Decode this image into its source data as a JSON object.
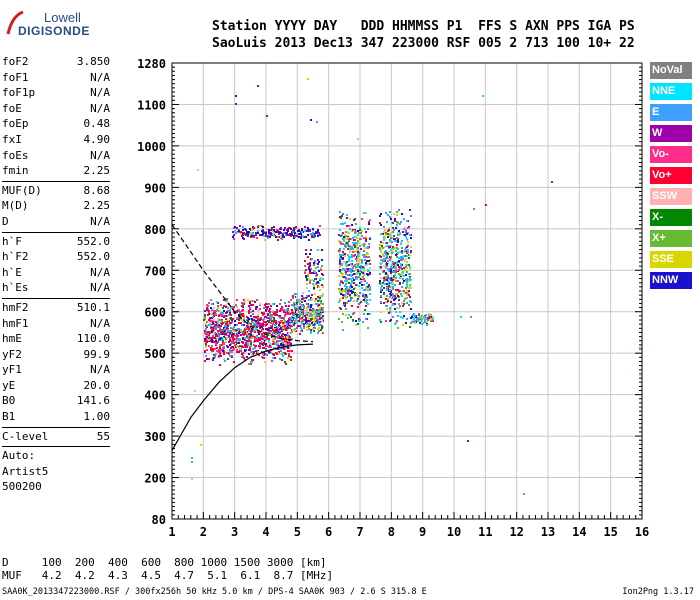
{
  "logo": {
    "line1": "Lowell",
    "line2": "DIGISONDE"
  },
  "header": {
    "row1": "Station YYYY DAY   DDD HHMMSS P1  FFS S AXN PPS IGA PS",
    "row2": "SaoLuis 2013 Dec13 347 223000 RSF 005 2 713 100 10+ 22"
  },
  "params": [
    {
      "label": "foF2",
      "value": "3.850"
    },
    {
      "label": "foF1",
      "value": "N/A"
    },
    {
      "label": "foF1p",
      "value": "N/A"
    },
    {
      "label": "foE",
      "value": "N/A"
    },
    {
      "label": "foEp",
      "value": "0.48"
    },
    {
      "label": "fxI",
      "value": "4.90"
    },
    {
      "label": "foEs",
      "value": "N/A"
    },
    {
      "label": "fmin",
      "value": "2.25"
    },
    {
      "sep": true
    },
    {
      "label": "MUF(D)",
      "value": "8.68"
    },
    {
      "label": "M(D)",
      "value": "2.25"
    },
    {
      "label": "D",
      "value": "N/A"
    },
    {
      "sep": true
    },
    {
      "label": "h`F",
      "value": "552.0"
    },
    {
      "label": "h`F2",
      "value": "552.0"
    },
    {
      "label": "h`E",
      "value": "N/A"
    },
    {
      "label": "h`Es",
      "value": "N/A"
    },
    {
      "sep": true
    },
    {
      "label": "hmF2",
      "value": "510.1"
    },
    {
      "label": "hmF1",
      "value": "N/A"
    },
    {
      "label": "hmE",
      "value": "110.0"
    },
    {
      "label": "yF2",
      "value": "99.9"
    },
    {
      "label": "yF1",
      "value": "N/A"
    },
    {
      "label": "yE",
      "value": "20.0"
    },
    {
      "label": "B0",
      "value": "141.6"
    },
    {
      "label": "B1",
      "value": "1.00"
    },
    {
      "sep": true
    },
    {
      "label": "C-level",
      "value": "55"
    },
    {
      "sep": true
    }
  ],
  "auto": {
    "line1": "Auto:",
    "line2": "Artist5",
    "line3": "500200"
  },
  "legend": [
    {
      "label": "NoVal",
      "color": "#808080"
    },
    {
      "label": "NNE",
      "color": "#00e5ff"
    },
    {
      "label": "E",
      "color": "#3da0ff"
    },
    {
      "label": "W",
      "color": "#a000a8"
    },
    {
      "label": "Vo-",
      "color": "#ff2d8a"
    },
    {
      "label": "Vo+",
      "color": "#ff0030"
    },
    {
      "label": "SSW",
      "color": "#ffb0b0"
    },
    {
      "label": "X-",
      "color": "#008800"
    },
    {
      "label": "X+",
      "color": "#66bb33"
    },
    {
      "label": "SSE",
      "color": "#d8d800"
    },
    {
      "label": "NNW",
      "color": "#1a10d0"
    }
  ],
  "footer": {
    "row1": "D     100  200  400  600  800 1000 1500 3000 [km]",
    "row2": "MUF   4.2  4.2  4.3  4.5  4.7  5.1  6.1  8.7 [MHz]",
    "file_line": "SAA0K_2013347223000.RSF / 300fx256h 50 kHz 5.0 km / DPS-4 SAA0K 903 / 2.6 S 315.8 E",
    "version": "Ion2Png 1.3.17"
  },
  "chart_data": {
    "type": "scatter",
    "x_ticks": [
      "1",
      "2",
      "3",
      "4",
      "5",
      "6",
      "7",
      "8",
      "9",
      "10",
      "11",
      "12",
      "13",
      "14",
      "15",
      "16"
    ],
    "y_ticks": [
      "80",
      "200",
      "300",
      "400",
      "500",
      "600",
      "700",
      "800",
      "900",
      "1000",
      "1100",
      "1280"
    ],
    "xlim": [
      1,
      16
    ],
    "ylim": [
      80,
      1280
    ],
    "grid": true,
    "clusters": [
      {
        "x": [
          2.0,
          4.8
        ],
        "y": [
          470,
          640
        ],
        "n": 1300,
        "weights": [
          0.4,
          0.5,
          1,
          1.3,
          1.6,
          2.6,
          0.3,
          0.3,
          0.2,
          0.5,
          0.6
        ]
      },
      {
        "x": [
          4.8,
          5.8
        ],
        "y": [
          545,
          650
        ],
        "n": 380,
        "weights": [
          0.3,
          1,
          1.5,
          1.2,
          0.8,
          0.8,
          0.3,
          0.4,
          0.4,
          1.6,
          0.6
        ]
      },
      {
        "x": [
          2.9,
          5.7
        ],
        "y": [
          775,
          810
        ],
        "n": 260,
        "weights": [
          0.3,
          0.4,
          0.8,
          2,
          0.4,
          0.3,
          0.1,
          0.2,
          0.2,
          0.4,
          2.4
        ]
      },
      {
        "x": [
          5.2,
          5.8
        ],
        "y": [
          640,
          760
        ],
        "n": 90,
        "weights": [
          0.3,
          1,
          1,
          1,
          0.5,
          0.4,
          0.2,
          0.3,
          0.3,
          1.2,
          0.8
        ]
      },
      {
        "x": [
          6.3,
          7.3
        ],
        "y": [
          555,
          860
        ],
        "n": 520,
        "weights": [
          0.3,
          1.5,
          2,
          1,
          0.6,
          0.5,
          0.2,
          0.4,
          0.4,
          1.6,
          1
        ]
      },
      {
        "x": [
          7.6,
          8.6
        ],
        "y": [
          555,
          860
        ],
        "n": 520,
        "weights": [
          0.3,
          1.5,
          2,
          1,
          0.6,
          0.5,
          0.2,
          0.4,
          0.4,
          1.6,
          1
        ]
      },
      {
        "x": [
          8.6,
          9.3
        ],
        "y": [
          570,
          600
        ],
        "n": 90,
        "weights": [
          0.3,
          1.5,
          2,
          0.8,
          0.3,
          0.3,
          0.2,
          0.4,
          0.4,
          1.5,
          0.5
        ]
      }
    ],
    "scattered_points": [
      {
        "x": 3.0,
        "y": 1140,
        "cat": "NNW"
      },
      {
        "x": 3.0,
        "y": 1105,
        "cat": "W"
      },
      {
        "x": 3.7,
        "y": 1183,
        "cat": "W"
      },
      {
        "x": 4.0,
        "y": 1075,
        "cat": "W"
      },
      {
        "x": 5.3,
        "y": 1215,
        "cat": "SSE"
      },
      {
        "x": 5.4,
        "y": 1065,
        "cat": "NNW"
      },
      {
        "x": 5.6,
        "y": 1060,
        "cat": "E"
      },
      {
        "x": 6.9,
        "y": 1020,
        "cat": "SSW"
      },
      {
        "x": 10.4,
        "y": 290,
        "cat": "W"
      },
      {
        "x": 10.6,
        "y": 850,
        "cat": "E"
      },
      {
        "x": 10.9,
        "y": 1140,
        "cat": "NNE"
      },
      {
        "x": 11.0,
        "y": 860,
        "cat": "Vo+"
      },
      {
        "x": 12.2,
        "y": 155,
        "cat": "X+"
      },
      {
        "x": 13.1,
        "y": 915,
        "cat": "X-"
      },
      {
        "x": 15.9,
        "y": 515,
        "cat": "NNE"
      },
      {
        "x": 15.9,
        "y": 450,
        "cat": "SSW"
      },
      {
        "x": 1.6,
        "y": 250,
        "cat": "NNE"
      },
      {
        "x": 1.6,
        "y": 240,
        "cat": "E"
      },
      {
        "x": 1.6,
        "y": 200,
        "cat": "SSW"
      },
      {
        "x": 1.8,
        "y": 945,
        "cat": "SSW"
      },
      {
        "x": 1.9,
        "y": 280,
        "cat": "SSE"
      },
      {
        "x": 1.7,
        "y": 410,
        "cat": "SSW"
      },
      {
        "x": 10.5,
        "y": 590,
        "cat": "E"
      },
      {
        "x": 10.2,
        "y": 590,
        "cat": "NNE"
      }
    ],
    "curves": [
      {
        "name": "dashed",
        "style": "dashed",
        "points": [
          [
            1.0,
            810
          ],
          [
            1.5,
            755
          ],
          [
            2.0,
            700
          ],
          [
            2.5,
            650
          ],
          [
            3.0,
            600
          ],
          [
            3.5,
            565
          ],
          [
            4.0,
            545
          ],
          [
            4.5,
            535
          ],
          [
            5.0,
            530
          ],
          [
            5.5,
            528
          ]
        ]
      },
      {
        "name": "solid",
        "style": "solid",
        "points": [
          [
            1.0,
            265
          ],
          [
            1.3,
            305
          ],
          [
            1.6,
            345
          ],
          [
            2.0,
            385
          ],
          [
            2.5,
            430
          ],
          [
            3.0,
            465
          ],
          [
            3.5,
            490
          ],
          [
            4.0,
            505
          ],
          [
            4.5,
            515
          ],
          [
            5.0,
            520
          ],
          [
            5.5,
            522
          ]
        ]
      }
    ]
  }
}
